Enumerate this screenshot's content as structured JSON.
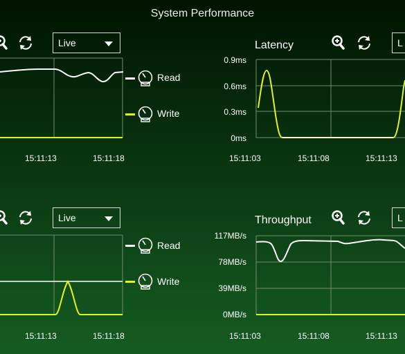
{
  "page": {
    "title": "System Performance"
  },
  "panels": {
    "top_left": {
      "dropdown": {
        "value": "Live"
      },
      "legend": [
        {
          "label": "Read",
          "color": "#ffffff"
        },
        {
          "label": "Write",
          "color": "#e6f21b"
        }
      ],
      "x_ticks": [
        "15:11:13",
        "15:11:18"
      ]
    },
    "top_right": {
      "title": "Latency",
      "dropdown": {
        "value": "L"
      },
      "y_ticks": [
        "0.9ms",
        "0.6ms",
        "0.3ms",
        "0ms"
      ],
      "x_ticks": [
        "15:11:03",
        "15:11:08",
        "15:11:13"
      ]
    },
    "bottom_left": {
      "dropdown": {
        "value": "Live"
      },
      "legend": [
        {
          "label": "Read",
          "color": "#ffffff"
        },
        {
          "label": "Write",
          "color": "#e6f21b"
        }
      ],
      "x_ticks": [
        "15:11:13",
        "15:11:18"
      ]
    },
    "bottom_right": {
      "title": "Throughput",
      "dropdown": {
        "value": "L"
      },
      "y_ticks": [
        "117MB/s",
        "78MB/s",
        "39MB/s",
        "0MB/s"
      ],
      "x_ticks": [
        "15:11:03",
        "15:11:08",
        "15:11:13"
      ]
    }
  },
  "icons": {
    "zoom": "zoom-in-icon",
    "refresh": "refresh-icon",
    "gauge": "gauge-icon"
  },
  "colors": {
    "read": "#ffffff",
    "write": "#e6f21b",
    "grid": "#6f8f6f"
  }
}
